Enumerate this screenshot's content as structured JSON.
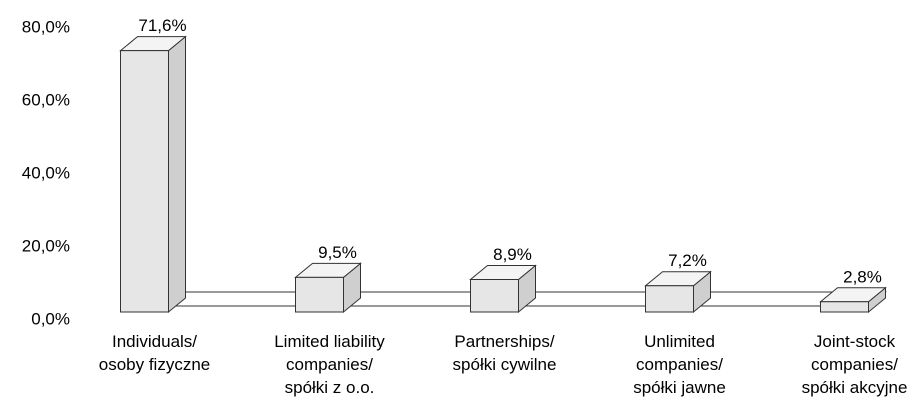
{
  "chart_data": {
    "type": "bar3d",
    "categories": [
      "Individuals/\nosoby fizyczne",
      "Limited liability\ncompanies/\nspółki z o.o.",
      "Partnerships/\nspółki cywilne",
      "Unlimited\ncompanies/\nspółki jawne",
      "Joint-stock\ncompanies/\nspółki akcyjne"
    ],
    "values": [
      71.6,
      9.5,
      8.9,
      7.2,
      2.8
    ],
    "value_labels": [
      "71,6%",
      "9,5%",
      "8,9%",
      "7,2%",
      "2,8%"
    ],
    "color": "#e6e6e6",
    "ylim": [
      0,
      80
    ],
    "yticks": [
      {
        "value": 0,
        "label": "0,0%"
      },
      {
        "value": 20,
        "label": "20,0%"
      },
      {
        "value": 40,
        "label": "40,0%"
      },
      {
        "value": 60,
        "label": "60,0%"
      },
      {
        "value": 80,
        "label": "80,0%"
      }
    ],
    "grid": false
  }
}
